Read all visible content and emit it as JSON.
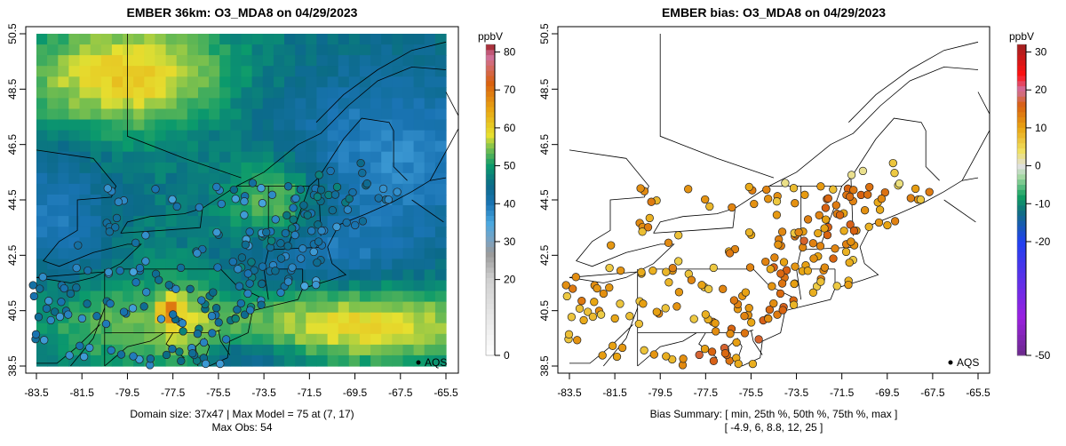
{
  "panels": [
    {
      "title": "EMBER 36km: O3_MDA8 on 04/29/2023",
      "subtitle_lines": [
        "Domain size: 37x47 | Max Model = 75 at (7, 17)",
        "Max Obs: 54"
      ],
      "legend_label": "AQS",
      "colorbar": {
        "unit": "ppbV",
        "ticks": [
          "0",
          "20",
          "30",
          "40",
          "50",
          "60",
          "70",
          "80"
        ],
        "range": [
          0,
          82
        ]
      }
    },
    {
      "title": "EMBER bias: O3_MDA8 on 04/29/2023",
      "subtitle_lines": [
        "Bias Summary: [ min, 25th %, 50th %, 75th %, max ]",
        "[ -4.9,   6,   8.8,   12,   25 ]"
      ],
      "legend_label": "AQS",
      "colorbar": {
        "unit": "ppbV",
        "ticks": [
          "-50",
          "-20",
          "-10",
          "0",
          "10",
          "20",
          "30"
        ],
        "range": [
          -50,
          32
        ]
      }
    }
  ],
  "axes": {
    "x_ticks": [
      "-83.5",
      "-81.5",
      "-79.5",
      "-77.5",
      "-75.5",
      "-73.5",
      "-71.5",
      "-69.5",
      "-67.5",
      "-65.5"
    ],
    "y_ticks": [
      "38.5",
      "40.5",
      "42.5",
      "44.5",
      "46.5",
      "48.5",
      "50.5"
    ],
    "xlim": [
      -83.5,
      -65.5
    ],
    "ylim": [
      38.5,
      50.5
    ]
  },
  "chart_data": [
    {
      "type": "heatmap",
      "title": "EMBER 36km: O3_MDA8 on 04/29/2023",
      "units": "ppbV",
      "max_model": 75,
      "max_obs": 54,
      "domain": "37x47"
    },
    {
      "type": "scatter",
      "title": "EMBER bias: O3_MDA8 on 04/29/2023",
      "units": "ppbV",
      "bias_summary": {
        "min": -4.9,
        "p25": 6,
        "p50": 8.8,
        "p75": 12,
        "max": 25
      }
    }
  ]
}
